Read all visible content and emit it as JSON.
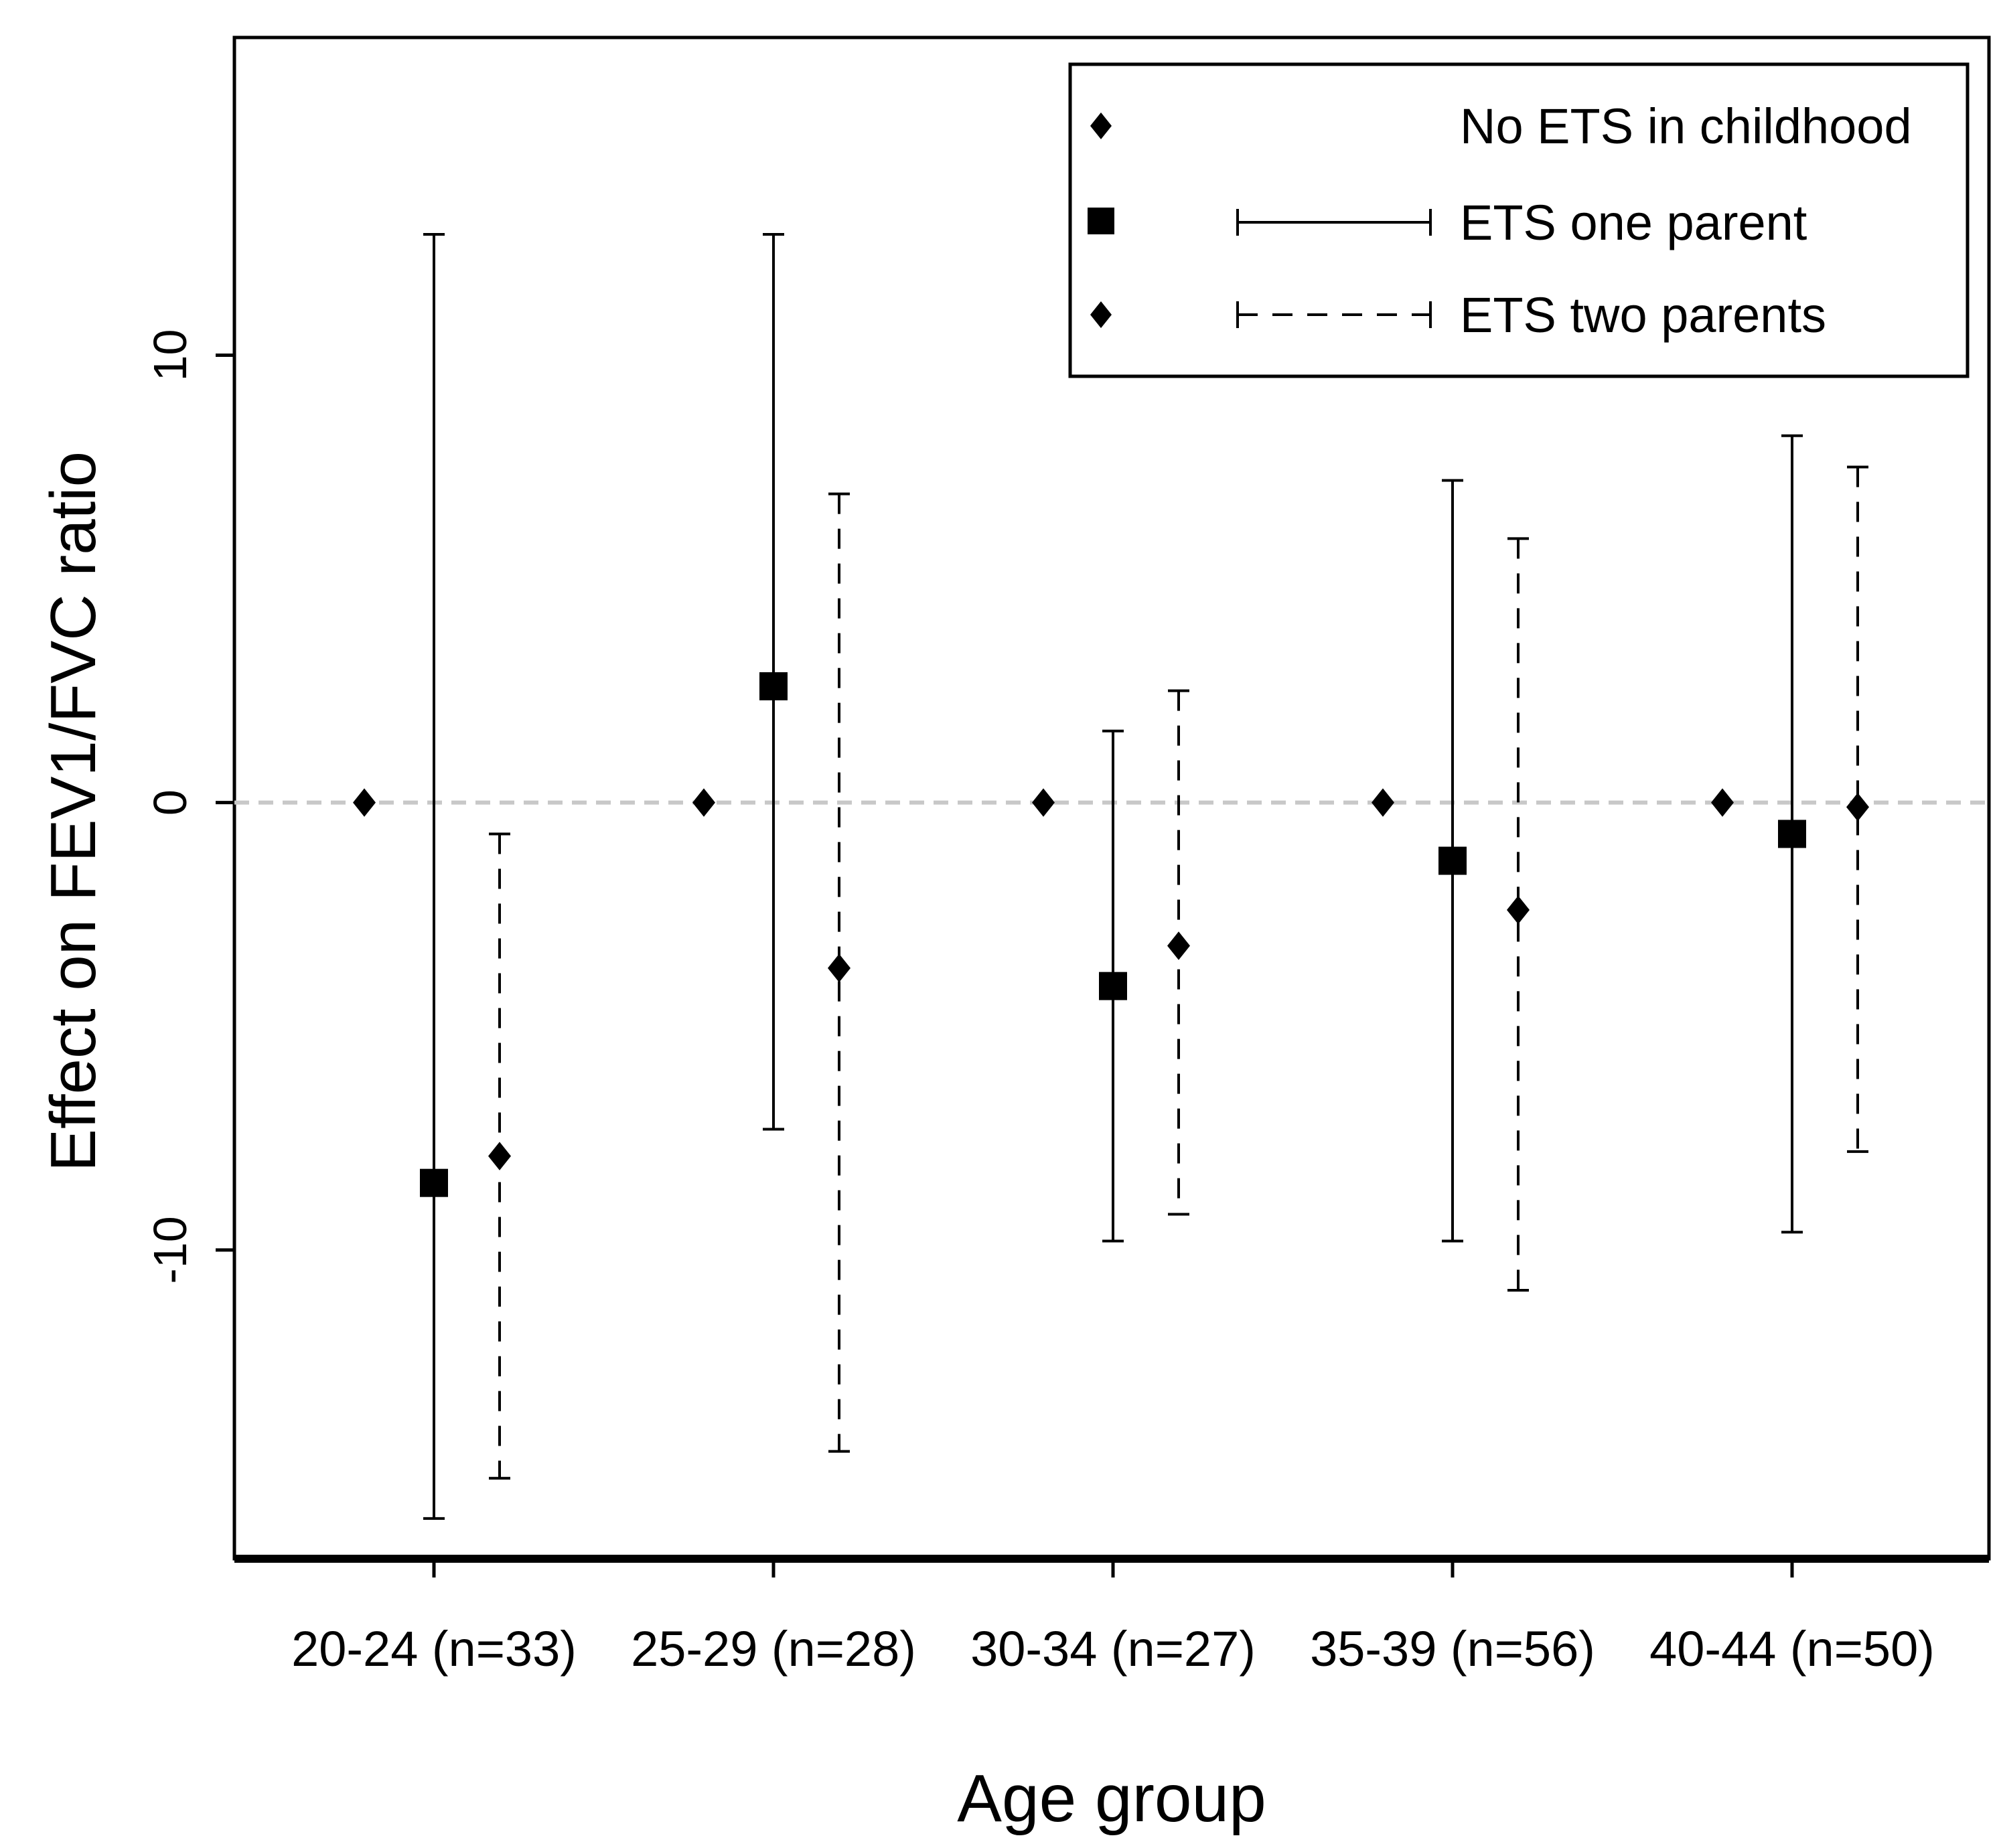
{
  "chart_data": {
    "type": "scatter",
    "xlabel": "Age group",
    "ylabel": "Effect on FEV1/FVC ratio",
    "categories": [
      "20-24 (n=33)",
      "25-29 (n=28)",
      "30-34 (n=27)",
      "35-39 (n=56)",
      "40-44 (n=50)"
    ],
    "ylim": [
      -16.9,
      17.1
    ],
    "yticks": [
      -10,
      0,
      10
    ],
    "ytick_labels": [
      "-10",
      "0",
      "10"
    ],
    "reference_line": 0,
    "grid": false,
    "legend_position": "top-right",
    "series": [
      {
        "name": "No ETS in childhood",
        "marker": "diamond",
        "line_style": "none",
        "values": [
          0,
          0,
          0,
          0,
          0
        ]
      },
      {
        "name": "ETS one parent",
        "marker": "square",
        "line_style": "solid",
        "values": [
          -8.5,
          2.6,
          -4.1,
          -1.3,
          -0.7
        ],
        "lower": [
          -16.0,
          -7.3,
          -9.8,
          -9.8,
          -9.6
        ],
        "upper": [
          12.7,
          12.7,
          1.6,
          7.2,
          8.2
        ]
      },
      {
        "name": "ETS two parents",
        "marker": "diamond",
        "line_style": "dashed",
        "values": [
          -7.9,
          -3.7,
          -3.2,
          -2.4,
          -0.1
        ],
        "lower": [
          -15.1,
          -14.5,
          -9.2,
          -10.9,
          -7.8
        ],
        "upper": [
          -0.7,
          6.9,
          2.5,
          5.9,
          7.5
        ]
      }
    ]
  }
}
